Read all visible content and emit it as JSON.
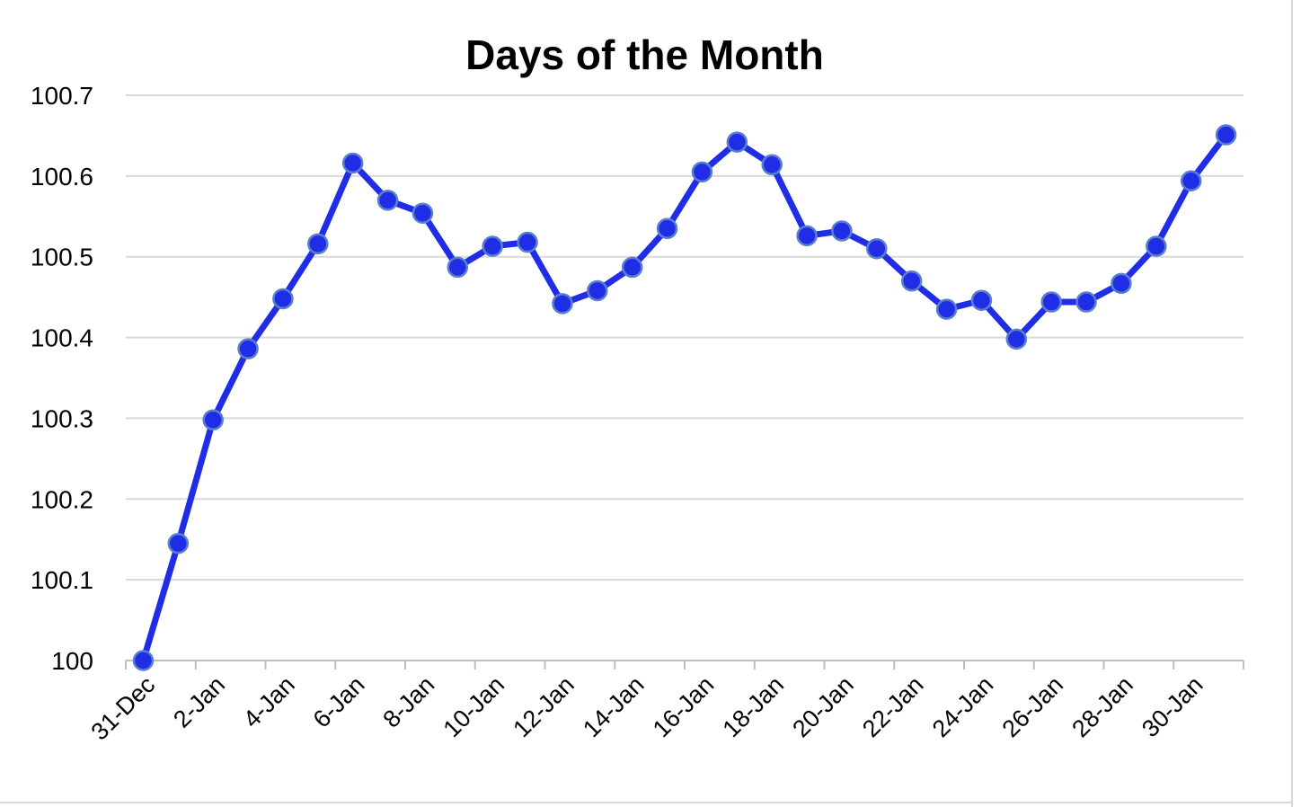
{
  "chart_data": {
    "type": "line",
    "title": "Days of the Month",
    "xlabel": "",
    "ylabel": "",
    "ylim": [
      100,
      100.7
    ],
    "y_ticks": [
      "100",
      "100.1",
      "100.2",
      "100.3",
      "100.4",
      "100.5",
      "100.6",
      "100.7"
    ],
    "x_tick_labels": [
      "31-Dec",
      "2-Jan",
      "4-Jan",
      "6-Jan",
      "8-Jan",
      "10-Jan",
      "12-Jan",
      "14-Jan",
      "16-Jan",
      "18-Jan",
      "20-Jan",
      "22-Jan",
      "24-Jan",
      "26-Jan",
      "28-Jan",
      "30-Jan"
    ],
    "x": [
      "31-Dec",
      "1-Jan",
      "2-Jan",
      "3-Jan",
      "4-Jan",
      "5-Jan",
      "6-Jan",
      "7-Jan",
      "8-Jan",
      "9-Jan",
      "10-Jan",
      "11-Jan",
      "12-Jan",
      "13-Jan",
      "14-Jan",
      "15-Jan",
      "16-Jan",
      "17-Jan",
      "18-Jan",
      "19-Jan",
      "20-Jan",
      "21-Jan",
      "22-Jan",
      "23-Jan",
      "24-Jan",
      "25-Jan",
      "26-Jan",
      "27-Jan",
      "28-Jan",
      "29-Jan",
      "30-Jan",
      "31-Jan"
    ],
    "series": [
      {
        "values": [
          100.0,
          100.145,
          100.298,
          100.386,
          100.448,
          100.516,
          100.616,
          100.57,
          100.554,
          100.487,
          100.513,
          100.518,
          100.442,
          100.458,
          100.487,
          100.535,
          100.605,
          100.642,
          100.614,
          100.526,
          100.532,
          100.51,
          100.47,
          100.435,
          100.446,
          100.398,
          100.444,
          100.444,
          100.467,
          100.513,
          100.594,
          100.651
        ],
        "color": "#1f2ee6"
      }
    ],
    "grid": true,
    "legend": "none"
  }
}
